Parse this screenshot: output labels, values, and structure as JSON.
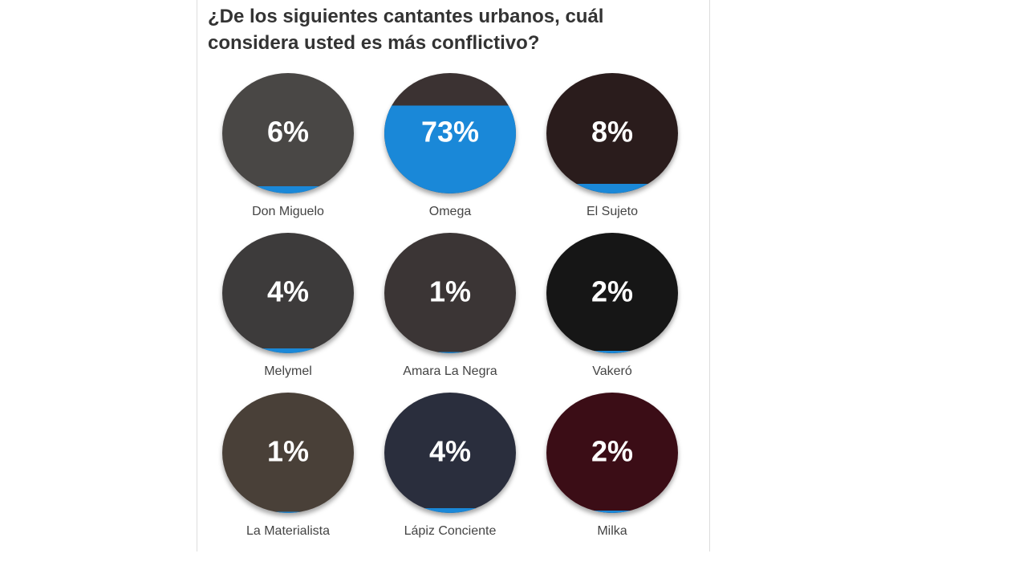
{
  "question": "¿De los siguientes cantantes urbanos, cuál considera usted es más conflictivo?",
  "options": [
    {
      "name": "Don Miguelo",
      "value": 6,
      "label": "6%"
    },
    {
      "name": "Omega",
      "value": 73,
      "label": "73%"
    },
    {
      "name": "El Sujeto",
      "value": 8,
      "label": "8%"
    },
    {
      "name": "Melymel",
      "value": 4,
      "label": "4%"
    },
    {
      "name": "Amara La Negra",
      "value": 1,
      "label": "1%"
    },
    {
      "name": "Vakeró",
      "value": 2,
      "label": "2%"
    },
    {
      "name": "La Materialista",
      "value": 1,
      "label": "1%"
    },
    {
      "name": "Lápiz Conciente",
      "value": 4,
      "label": "4%"
    },
    {
      "name": "Milka",
      "value": 2,
      "label": "2%"
    }
  ]
}
